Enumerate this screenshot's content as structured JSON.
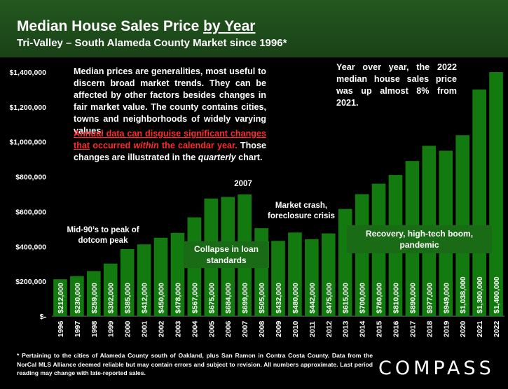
{
  "header": {
    "title_prefix": "Median House Sales Price ",
    "title_underlined": "by Year",
    "subtitle": "Tri-Valley – South Alameda County Market since 1996*"
  },
  "notes": {
    "left": "Median prices are generalities, most useful to discern broad market trends. They can be affected by other factors besides changes in fair market value. The county contains cities, towns and neighborhoods of widely varying values.",
    "red_underlined": "Annual data can disguise significant changes that",
    "red_prefix": " occurred ",
    "red_italic": "within",
    "red_suffix": " the calendar year.",
    "white_prefix": " Those changes are illustrated in the ",
    "white_italic": "quarterly",
    "white_suffix": " chart.",
    "right": "Year over year, the 2022 median house sales price was up almost 8% from 2021."
  },
  "annotations": {
    "dotcom": "Mid-90’s to peak of dotcom peak",
    "y2007": "2007",
    "crash": "Market crash, foreclosure crisis",
    "collapse": "Collapse in loan standards",
    "recovery": "Recovery, high-tech boom, pandemic"
  },
  "footer": "* Pertaining to the cities of Alameda County south of Oakland, plus San Ramon in Contra Costa County. Data from the NorCal MLS Alliance deemed reliable but may contain errors and subject to revision. All numbers approximate. Last period reading may change with late-reported sales.",
  "logo": "COMPASS",
  "colors": {
    "bar": "#137a0f",
    "title_bg": "#1f4d1b",
    "accent_red": "#ff2a2a"
  },
  "chart_data": {
    "type": "bar",
    "title": "Median House Sales Price by Year",
    "subtitle": "Tri-Valley – South Alameda County Market since 1996*",
    "categories": [
      "1996",
      "1997",
      "1998",
      "1999",
      "2000",
      "2001",
      "2002",
      "2003",
      "2004",
      "2005",
      "2006",
      "2007",
      "2008",
      "2009",
      "2010",
      "2011",
      "2012",
      "2013",
      "2014",
      "2015",
      "2016",
      "2017",
      "2018",
      "2019",
      "2020",
      "2021",
      "2022"
    ],
    "values": [
      212000,
      230000,
      259000,
      302000,
      385000,
      412000,
      450000,
      478000,
      567000,
      675000,
      684000,
      699000,
      505000,
      432000,
      480000,
      442000,
      475000,
      615000,
      700000,
      760000,
      810000,
      890000,
      977000,
      949000,
      1038000,
      1300000,
      1400000
    ],
    "labels": [
      "$212,000",
      "$230,000",
      "$259,000",
      "$302,000",
      "$385,000",
      "$412,000",
      "$450,000",
      "$478,000",
      "$567,000",
      "$675,000",
      "$684,000",
      "$699,000",
      "$505,000",
      "$432,000",
      "$480,000",
      "$442,000",
      "$475,000",
      "$615,000",
      "$700,000",
      "$760,000",
      "$810,000",
      "$890,000",
      "$977,000",
      "$949,000",
      "$1,038,000",
      "$1,300,000",
      "$1,400,000"
    ],
    "y_ticks": [
      "$-",
      "$200,000",
      "$400,000",
      "$600,000",
      "$800,000",
      "$1,000,000",
      "$1,200,000",
      "$1,400,000"
    ],
    "y_tick_values": [
      0,
      200000,
      400000,
      600000,
      800000,
      1000000,
      1200000,
      1400000
    ],
    "ylim": [
      0,
      1400000
    ],
    "grid": false,
    "legend": "none"
  }
}
